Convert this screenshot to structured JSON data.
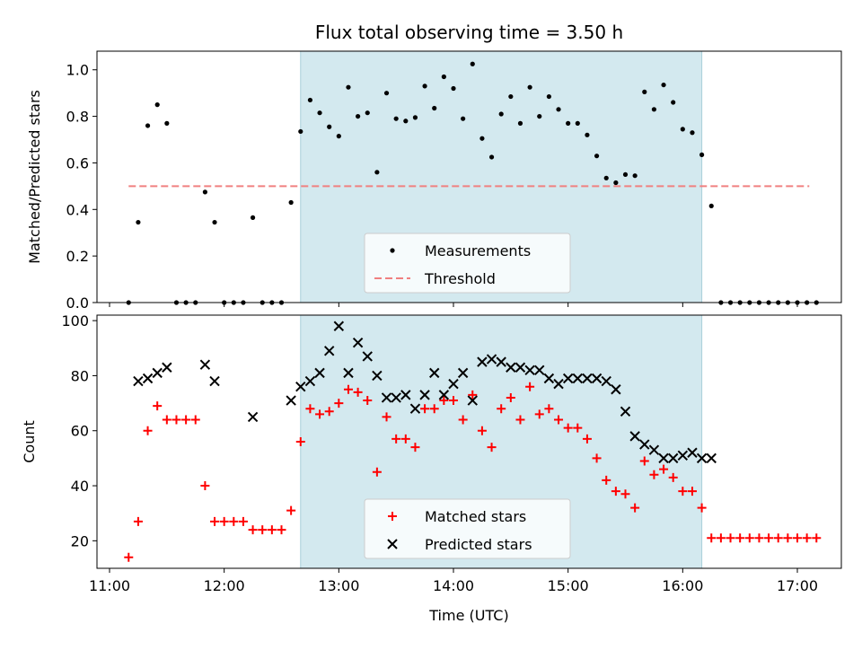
{
  "chart_data": [
    {
      "type": "scatter",
      "title": "Flux total observing time = 3.50 h",
      "xlabel": "",
      "ylabel": "Matched/Predicted stars",
      "ylim": [
        0.0,
        1.08
      ],
      "yticks": [
        "0.0",
        "0.2",
        "0.4",
        "0.6",
        "0.8",
        "1.0"
      ],
      "shaded_interval": {
        "start": "12:40",
        "end": "16:10",
        "color": "#d3e9ef"
      },
      "legend": {
        "position": "lower center",
        "entries": [
          "Measurements",
          "Threshold"
        ]
      },
      "threshold": {
        "name": "Threshold",
        "value": 0.5,
        "start": "11:10",
        "end": "17:10",
        "color": "#f08080"
      },
      "series": [
        {
          "name": "Measurements",
          "marker": "dot",
          "color": "#000000",
          "points": [
            [
              "11:10",
              0.0
            ],
            [
              "11:15",
              0.345
            ],
            [
              "11:20",
              0.76
            ],
            [
              "11:25",
              0.85
            ],
            [
              "11:30",
              0.77
            ],
            [
              "11:35",
              0.0
            ],
            [
              "11:40",
              0.0
            ],
            [
              "11:45",
              0.0
            ],
            [
              "11:50",
              0.475
            ],
            [
              "11:55",
              0.345
            ],
            [
              "12:00",
              0.0
            ],
            [
              "12:05",
              0.0
            ],
            [
              "12:10",
              0.0
            ],
            [
              "12:15",
              0.365
            ],
            [
              "12:20",
              0.0
            ],
            [
              "12:25",
              0.0
            ],
            [
              "12:30",
              0.0
            ],
            [
              "12:35",
              0.43
            ],
            [
              "12:40",
              0.735
            ],
            [
              "12:45",
              0.87
            ],
            [
              "12:50",
              0.815
            ],
            [
              "12:55",
              0.755
            ],
            [
              "13:00",
              0.715
            ],
            [
              "13:05",
              0.925
            ],
            [
              "13:10",
              0.8
            ],
            [
              "13:15",
              0.815
            ],
            [
              "13:20",
              0.56
            ],
            [
              "13:25",
              0.9
            ],
            [
              "13:30",
              0.79
            ],
            [
              "13:35",
              0.78
            ],
            [
              "13:40",
              0.795
            ],
            [
              "13:45",
              0.93
            ],
            [
              "13:50",
              0.835
            ],
            [
              "13:55",
              0.97
            ],
            [
              "14:00",
              0.92
            ],
            [
              "14:05",
              0.79
            ],
            [
              "14:10",
              1.025
            ],
            [
              "14:15",
              0.705
            ],
            [
              "14:20",
              0.625
            ],
            [
              "14:25",
              0.81
            ],
            [
              "14:30",
              0.885
            ],
            [
              "14:35",
              0.77
            ],
            [
              "14:40",
              0.925
            ],
            [
              "14:45",
              0.8
            ],
            [
              "14:50",
              0.885
            ],
            [
              "14:55",
              0.83
            ],
            [
              "15:00",
              0.77
            ],
            [
              "15:05",
              0.77
            ],
            [
              "15:10",
              0.72
            ],
            [
              "15:15",
              0.63
            ],
            [
              "15:20",
              0.535
            ],
            [
              "15:25",
              0.515
            ],
            [
              "15:30",
              0.55
            ],
            [
              "15:35",
              0.545
            ],
            [
              "15:40",
              0.905
            ],
            [
              "15:45",
              0.83
            ],
            [
              "15:50",
              0.935
            ],
            [
              "15:55",
              0.86
            ],
            [
              "16:00",
              0.745
            ],
            [
              "16:05",
              0.73
            ],
            [
              "16:10",
              0.635
            ],
            [
              "16:15",
              0.415
            ],
            [
              "16:20",
              0.0
            ],
            [
              "16:25",
              0.0
            ],
            [
              "16:30",
              0.0
            ],
            [
              "16:35",
              0.0
            ],
            [
              "16:40",
              0.0
            ],
            [
              "16:45",
              0.0
            ],
            [
              "16:50",
              0.0
            ],
            [
              "16:55",
              0.0
            ],
            [
              "17:00",
              0.0
            ],
            [
              "17:05",
              0.0
            ],
            [
              "17:10",
              0.0
            ]
          ]
        }
      ]
    },
    {
      "type": "scatter",
      "title": "",
      "xlabel": "Time (UTC)",
      "ylabel": "Count",
      "ylim": [
        10,
        102
      ],
      "yticks": [
        "20",
        "40",
        "60",
        "80",
        "100"
      ],
      "xticks": [
        "11:00",
        "12:00",
        "13:00",
        "14:00",
        "15:00",
        "16:00",
        "17:00"
      ],
      "shaded_interval": {
        "start": "12:40",
        "end": "16:10",
        "color": "#d3e9ef"
      },
      "legend": {
        "position": "lower center",
        "entries": [
          "Matched stars",
          "Predicted stars"
        ]
      },
      "series": [
        {
          "name": "Matched stars",
          "marker": "plus",
          "color": "#ff0000",
          "points": [
            [
              "11:10",
              14
            ],
            [
              "11:15",
              27
            ],
            [
              "11:20",
              60
            ],
            [
              "11:25",
              69
            ],
            [
              "11:30",
              64
            ],
            [
              "11:35",
              64
            ],
            [
              "11:40",
              64
            ],
            [
              "11:45",
              64
            ],
            [
              "11:50",
              40
            ],
            [
              "11:55",
              27
            ],
            [
              "12:00",
              27
            ],
            [
              "12:05",
              27
            ],
            [
              "12:10",
              27
            ],
            [
              "12:15",
              24
            ],
            [
              "12:20",
              24
            ],
            [
              "12:25",
              24
            ],
            [
              "12:30",
              24
            ],
            [
              "12:35",
              31
            ],
            [
              "12:40",
              56
            ],
            [
              "12:45",
              68
            ],
            [
              "12:50",
              66
            ],
            [
              "12:55",
              67
            ],
            [
              "13:00",
              70
            ],
            [
              "13:05",
              75
            ],
            [
              "13:10",
              74
            ],
            [
              "13:15",
              71
            ],
            [
              "13:20",
              45
            ],
            [
              "13:25",
              65
            ],
            [
              "13:30",
              57
            ],
            [
              "13:35",
              57
            ],
            [
              "13:40",
              54
            ],
            [
              "13:45",
              68
            ],
            [
              "13:50",
              68
            ],
            [
              "13:55",
              71
            ],
            [
              "14:00",
              71
            ],
            [
              "14:05",
              64
            ],
            [
              "14:10",
              73
            ],
            [
              "14:15",
              60
            ],
            [
              "14:20",
              54
            ],
            [
              "14:25",
              68
            ],
            [
              "14:30",
              72
            ],
            [
              "14:35",
              64
            ],
            [
              "14:40",
              76
            ],
            [
              "14:45",
              66
            ],
            [
              "14:50",
              68
            ],
            [
              "14:55",
              64
            ],
            [
              "15:00",
              61
            ],
            [
              "15:05",
              61
            ],
            [
              "15:10",
              57
            ],
            [
              "15:15",
              50
            ],
            [
              "15:20",
              42
            ],
            [
              "15:25",
              38
            ],
            [
              "15:30",
              37
            ],
            [
              "15:35",
              32
            ],
            [
              "15:40",
              49
            ],
            [
              "15:45",
              44
            ],
            [
              "15:50",
              46
            ],
            [
              "15:55",
              43
            ],
            [
              "16:00",
              38
            ],
            [
              "16:05",
              38
            ],
            [
              "16:10",
              32
            ],
            [
              "16:15",
              21
            ],
            [
              "16:20",
              21
            ],
            [
              "16:25",
              21
            ],
            [
              "16:30",
              21
            ],
            [
              "16:35",
              21
            ],
            [
              "16:40",
              21
            ],
            [
              "16:45",
              21
            ],
            [
              "16:50",
              21
            ],
            [
              "16:55",
              21
            ],
            [
              "17:00",
              21
            ],
            [
              "17:05",
              21
            ],
            [
              "17:10",
              21
            ]
          ]
        },
        {
          "name": "Predicted stars",
          "marker": "x",
          "color": "#000000",
          "points": [
            [
              "11:15",
              78
            ],
            [
              "11:20",
              79
            ],
            [
              "11:25",
              81
            ],
            [
              "11:30",
              83
            ],
            [
              "11:50",
              84
            ],
            [
              "11:55",
              78
            ],
            [
              "12:15",
              65
            ],
            [
              "12:35",
              71
            ],
            [
              "12:40",
              76
            ],
            [
              "12:45",
              78
            ],
            [
              "12:50",
              81
            ],
            [
              "12:55",
              89
            ],
            [
              "13:00",
              98
            ],
            [
              "13:05",
              81
            ],
            [
              "13:10",
              92
            ],
            [
              "13:15",
              87
            ],
            [
              "13:20",
              80
            ],
            [
              "13:25",
              72
            ],
            [
              "13:30",
              72
            ],
            [
              "13:35",
              73
            ],
            [
              "13:40",
              68
            ],
            [
              "13:45",
              73
            ],
            [
              "13:50",
              81
            ],
            [
              "13:55",
              73
            ],
            [
              "14:00",
              77
            ],
            [
              "14:05",
              81
            ],
            [
              "14:10",
              71
            ],
            [
              "14:15",
              85
            ],
            [
              "14:20",
              86
            ],
            [
              "14:25",
              85
            ],
            [
              "14:30",
              83
            ],
            [
              "14:35",
              83
            ],
            [
              "14:40",
              82
            ],
            [
              "14:45",
              82
            ],
            [
              "14:50",
              79
            ],
            [
              "14:55",
              77
            ],
            [
              "15:00",
              79
            ],
            [
              "15:05",
              79
            ],
            [
              "15:10",
              79
            ],
            [
              "15:15",
              79
            ],
            [
              "15:20",
              78
            ],
            [
              "15:25",
              75
            ],
            [
              "15:30",
              67
            ],
            [
              "15:35",
              58
            ],
            [
              "15:40",
              55
            ],
            [
              "15:45",
              53
            ],
            [
              "15:50",
              50
            ],
            [
              "15:55",
              50
            ],
            [
              "16:00",
              51
            ],
            [
              "16:05",
              52
            ],
            [
              "16:10",
              50
            ],
            [
              "16:15",
              50
            ]
          ]
        }
      ]
    }
  ]
}
